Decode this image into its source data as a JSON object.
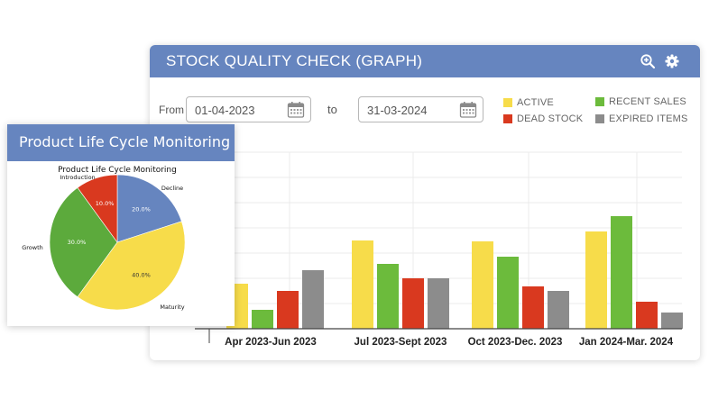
{
  "stock_panel": {
    "title": "STOCK QUALITY CHECK (GRAPH)",
    "icons": {
      "zoom": "zoom-in-icon",
      "settings": "gear-icon"
    },
    "from_label": "From",
    "to_label": "to",
    "from_date": "01-04-2023",
    "to_date": "31-03-2024",
    "calendar_icon": "calendar-icon",
    "legend": [
      {
        "key": "active",
        "label": "ACTIVE",
        "color": "#f7dc4a"
      },
      {
        "key": "recent",
        "label": "RECENT SALES",
        "color": "#6cbb3c"
      },
      {
        "key": "dead",
        "label": "DEAD STOCK",
        "color": "#d9391f"
      },
      {
        "key": "expired",
        "label": "EXPIRED ITEMS",
        "color": "#8c8c8c"
      }
    ]
  },
  "chart_data": [
    {
      "type": "bar",
      "categories": [
        "Apr 2023-Jun 2023",
        "Jul 2023-Sept 2023",
        "Oct 2023-Dec. 2023",
        "Jan 2024-Mar. 2024"
      ],
      "series": [
        {
          "name": "ACTIVE",
          "color": "#f7dc4a",
          "values": [
            50,
            98,
            97,
            108
          ]
        },
        {
          "name": "RECENT SALES",
          "color": "#6cbb3c",
          "values": [
            21,
            72,
            80,
            125
          ]
        },
        {
          "name": "DEAD STOCK",
          "color": "#d9391f",
          "values": [
            42,
            56,
            47,
            30
          ]
        },
        {
          "name": "EXPIRED ITEMS",
          "color": "#8c8c8c",
          "values": [
            65,
            56,
            42,
            18
          ]
        }
      ],
      "ylim": [
        0,
        196
      ],
      "grid": true
    },
    {
      "type": "pie",
      "title": "Product Life Cycle Monitoring",
      "slices": [
        {
          "label": "Decline",
          "value": 20.0,
          "pct_label": "20.0%",
          "color": "#6685bf"
        },
        {
          "label": "Maturity",
          "value": 40.0,
          "pct_label": "40.0%",
          "color": "#f7dc4a"
        },
        {
          "label": "Growth",
          "value": 30.0,
          "pct_label": "30.0%",
          "color": "#5caa3c"
        },
        {
          "label": "Introduction",
          "value": 10.0,
          "pct_label": "10.0%",
          "color": "#d9391f"
        }
      ]
    }
  ],
  "pie_panel": {
    "title": "Product Life Cycle Monitoring"
  }
}
